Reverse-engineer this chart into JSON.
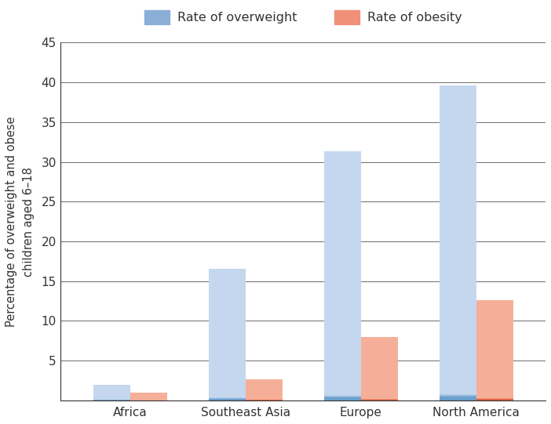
{
  "categories": [
    "Africa",
    "Southeast Asia",
    "Europe",
    "North America"
  ],
  "overweight_values": [
    2.0,
    16.7,
    31.7,
    40.0
  ],
  "obesity_values": [
    1.0,
    2.7,
    8.0,
    12.7
  ],
  "overweight_color_top": "#C5D8EF",
  "overweight_color_bottom": "#6B9FCC",
  "obesity_color_top": "#F5B09A",
  "obesity_color_bottom": "#E06040",
  "overweight_color": "#8AAED6",
  "obesity_color": "#F0907A",
  "ylabel": "Percentage of overweight and obese\nchildren aged 6–18",
  "ylim": [
    0,
    45
  ],
  "yticks": [
    0,
    5,
    10,
    15,
    20,
    25,
    30,
    35,
    40,
    45
  ],
  "legend_overweight": "Rate of overweight",
  "legend_obesity": "Rate of obesity",
  "bar_width": 0.32,
  "background_color": "#ffffff",
  "grid_color": "#555555",
  "axis_color": "#333333",
  "ylabel_fontsize": 10.5,
  "tick_fontsize": 11,
  "legend_fontsize": 11.5
}
